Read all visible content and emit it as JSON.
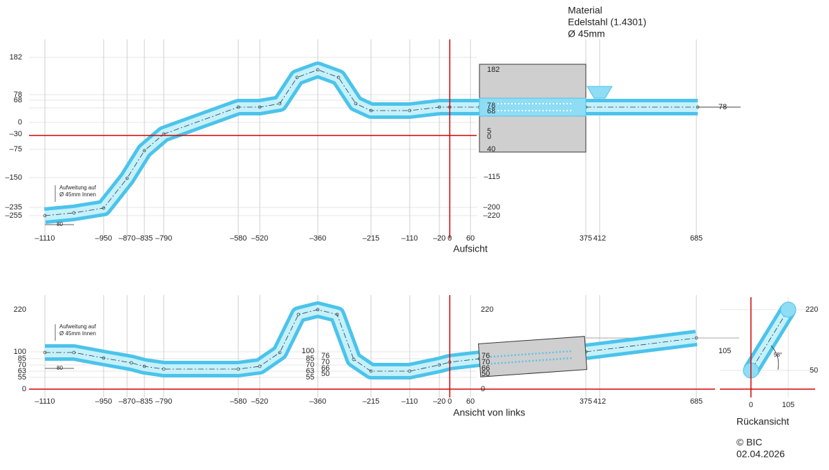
{
  "material": {
    "title": "Material",
    "spec": "Edelstahl (1.4301)",
    "diameter": "Ø 45mm"
  },
  "top_view": {
    "caption": "Aufsicht",
    "x_labels": [
      "–1110",
      "–950",
      "–870",
      "–835",
      "–790",
      "–580",
      "–520",
      "–360",
      "–215",
      "–110",
      "–20",
      "0",
      "60",
      "375",
      "412",
      "685"
    ],
    "y_labels_left": [
      "182",
      "78",
      "68",
      "0",
      "–30",
      "–75",
      "–150",
      "–235",
      "–255"
    ],
    "y_labels_right": [
      "–115",
      "–200",
      "–220"
    ],
    "muffler_labels": [
      "182",
      "78",
      "68",
      "5",
      "0",
      "40"
    ],
    "end_label": "78",
    "note": [
      "Aufweitung auf",
      "Ø 45mm Innen"
    ],
    "dimension": "80"
  },
  "side_view": {
    "caption": "Ansicht von links",
    "x_labels": [
      "–1110",
      "–950",
      "–870",
      "–835",
      "–790",
      "–580",
      "–520",
      "–360",
      "–215",
      "–110",
      "–20",
      "0",
      "60",
      "375",
      "412",
      "685"
    ],
    "y_labels_left": [
      "220",
      "100",
      "85",
      "70",
      "63",
      "55",
      "0"
    ],
    "mid_labels_a": [
      "100",
      "85",
      "70",
      "63",
      "55"
    ],
    "mid_labels_b": [
      "76",
      "70",
      "66",
      "50"
    ],
    "right_labels": [
      "220",
      "76",
      "70",
      "66",
      "50",
      "0"
    ],
    "end_label": "105",
    "note": [
      "Aufweitung auf",
      "Ø 45mm Innen"
    ],
    "dimension": "80"
  },
  "rear_view": {
    "caption": "Rückansicht",
    "x_labels": [
      "0",
      "105"
    ],
    "y_labels": [
      "220",
      "50"
    ],
    "angle": "58°"
  },
  "footer": {
    "copyright": "© BIC",
    "date": "02.04.2026"
  }
}
